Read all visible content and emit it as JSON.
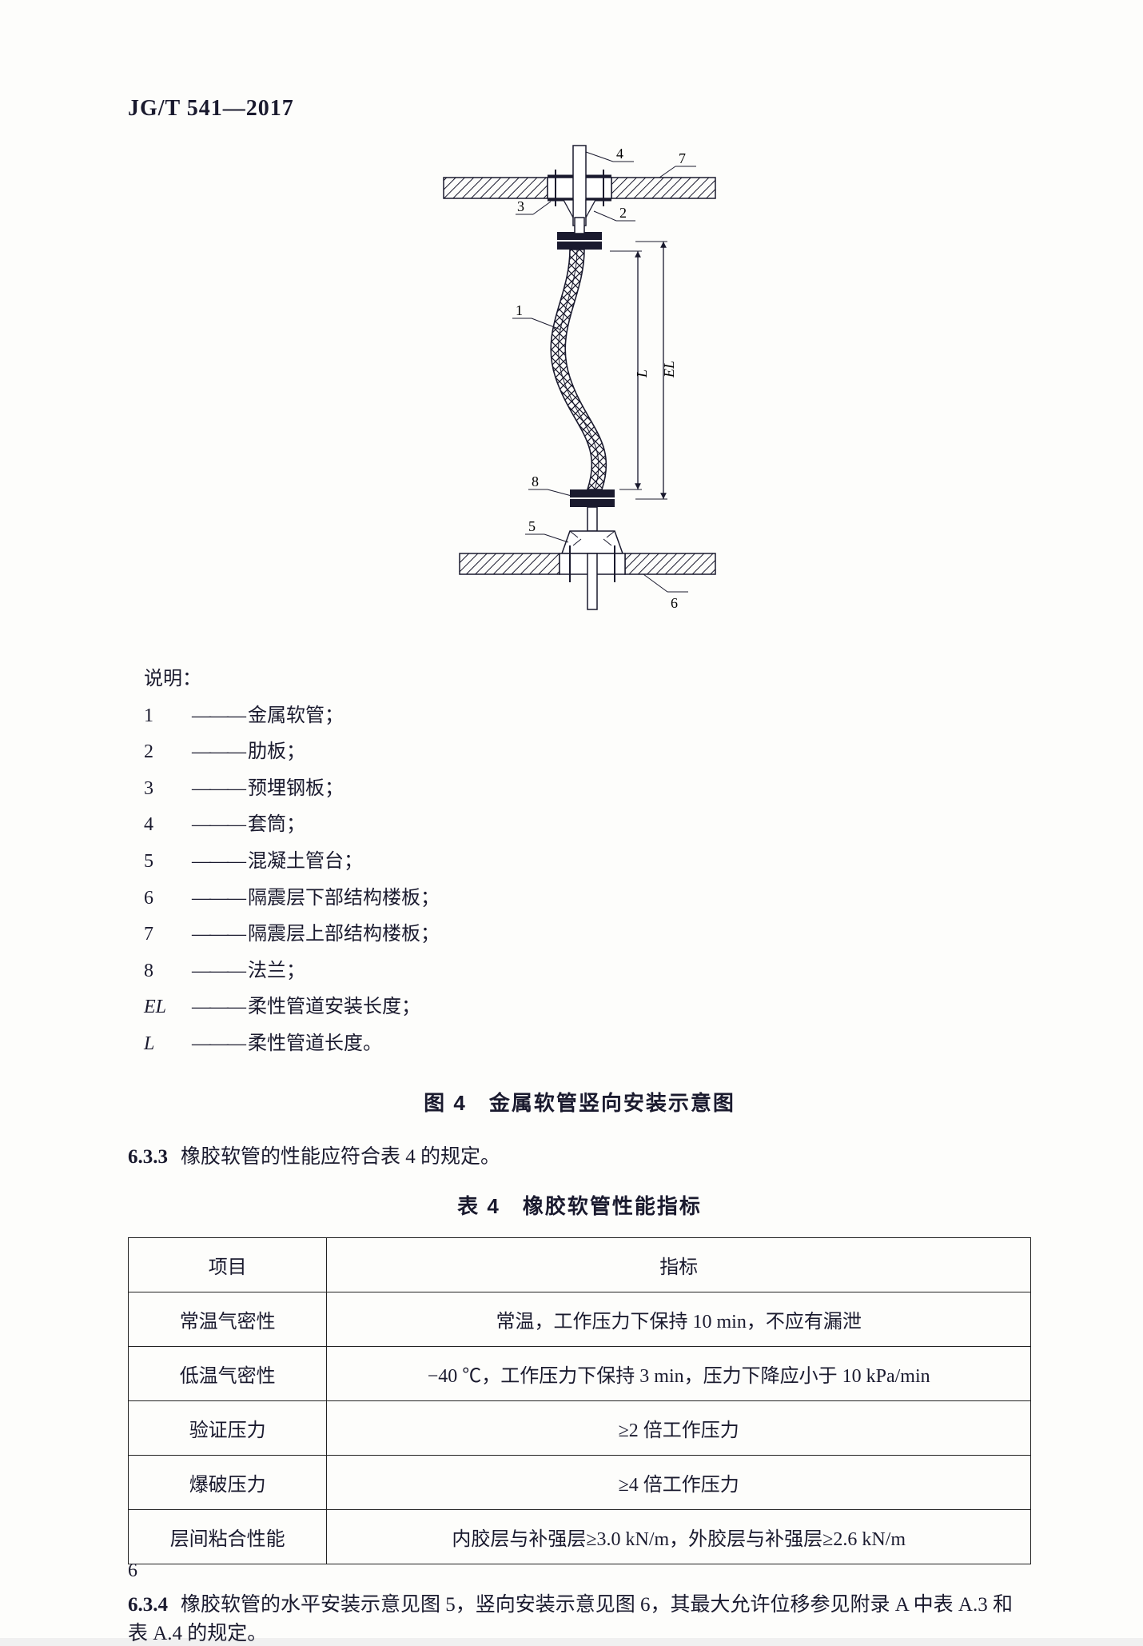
{
  "header": {
    "code": "JG/T 541—2017"
  },
  "figure": {
    "callouts": [
      "1",
      "2",
      "3",
      "4",
      "5",
      "6",
      "7",
      "8"
    ],
    "dim_labels": [
      "L",
      "EL"
    ]
  },
  "legend": {
    "title": "说明：",
    "items": [
      {
        "key": "1",
        "keyClass": "num",
        "text": "金属软管；"
      },
      {
        "key": "2",
        "keyClass": "num",
        "text": "肋板；"
      },
      {
        "key": "3",
        "keyClass": "num",
        "text": "预埋钢板；"
      },
      {
        "key": "4",
        "keyClass": "num",
        "text": "套筒；"
      },
      {
        "key": "5",
        "keyClass": "num",
        "text": "混凝土管台；"
      },
      {
        "key": "6",
        "keyClass": "num",
        "text": "隔震层下部结构楼板；"
      },
      {
        "key": "7",
        "keyClass": "num",
        "text": "隔震层上部结构楼板；"
      },
      {
        "key": "8",
        "keyClass": "num",
        "text": "法兰；"
      },
      {
        "key": "EL",
        "keyClass": "",
        "text": "柔性管道安装长度；"
      },
      {
        "key": "L",
        "keyClass": "",
        "text": "柔性管道长度。"
      }
    ]
  },
  "fig_caption": "图 4　金属软管竖向安装示意图",
  "clause_633": {
    "num": "6.3.3",
    "text": "橡胶软管的性能应符合表 4 的规定。"
  },
  "table_caption": "表 4　橡胶软管性能指标",
  "table": {
    "head": [
      "项目",
      "指标"
    ],
    "rows": [
      [
        "常温气密性",
        "常温，工作压力下保持 10 min，不应有漏泄"
      ],
      [
        "低温气密性",
        "−40 ℃，工作压力下保持 3 min，压力下降应小于 10 kPa/min"
      ],
      [
        "验证压力",
        "≥2 倍工作压力"
      ],
      [
        "爆破压力",
        "≥4 倍工作压力"
      ],
      [
        "层间粘合性能",
        "内胶层与补强层≥3.0 kN/m，外胶层与补强层≥2.6 kN/m"
      ]
    ]
  },
  "clause_634": {
    "num": "6.3.4",
    "text": "橡胶软管的水平安装示意见图 5，竖向安装示意见图 6，其最大允许位移参见附录 A 中表 A.3 和表 A.4 的规定。"
  },
  "page_number": "6"
}
